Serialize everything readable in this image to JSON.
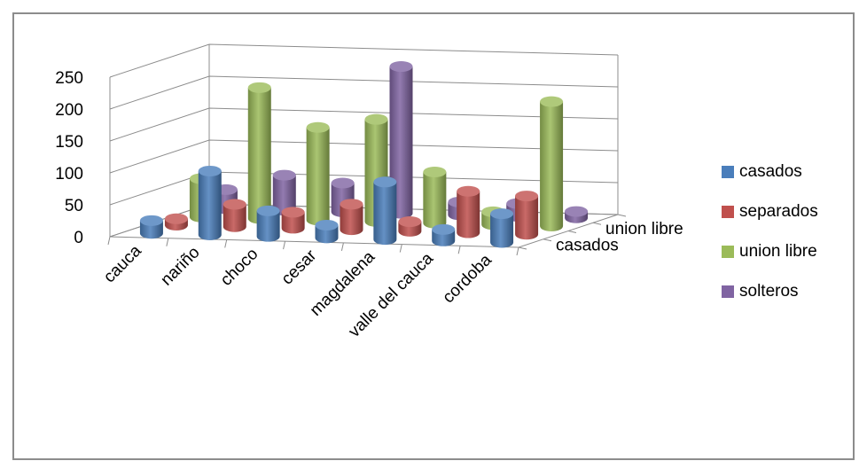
{
  "chart_data": {
    "type": "bar",
    "style": "3d-cylinder",
    "categories": [
      "cauca",
      "nariño",
      "choco",
      "cesar",
      "magdalena",
      "valle del cauca",
      "cordoba"
    ],
    "depth_axis_labels": [
      "casados",
      "union libre"
    ],
    "y_ticks": [
      "0",
      "50",
      "100",
      "150",
      "200",
      "250"
    ],
    "ylim": [
      0,
      250
    ],
    "series": [
      {
        "name": "casados",
        "color": "#4a7ebb",
        "values": [
          20,
          100,
          40,
          20,
          90,
          18,
          45
        ]
      },
      {
        "name": "separados",
        "color": "#c0504d",
        "values": [
          10,
          35,
          25,
          40,
          15,
          65,
          60
        ]
      },
      {
        "name": "union libre",
        "color": "#9bbb59",
        "values": [
          60,
          205,
          145,
          160,
          80,
          20,
          195
        ]
      },
      {
        "name": "solteros",
        "color": "#8064a2",
        "values": [
          30,
          55,
          45,
          230,
          20,
          20,
          10
        ]
      }
    ],
    "legend_position": "right",
    "grid": true
  }
}
